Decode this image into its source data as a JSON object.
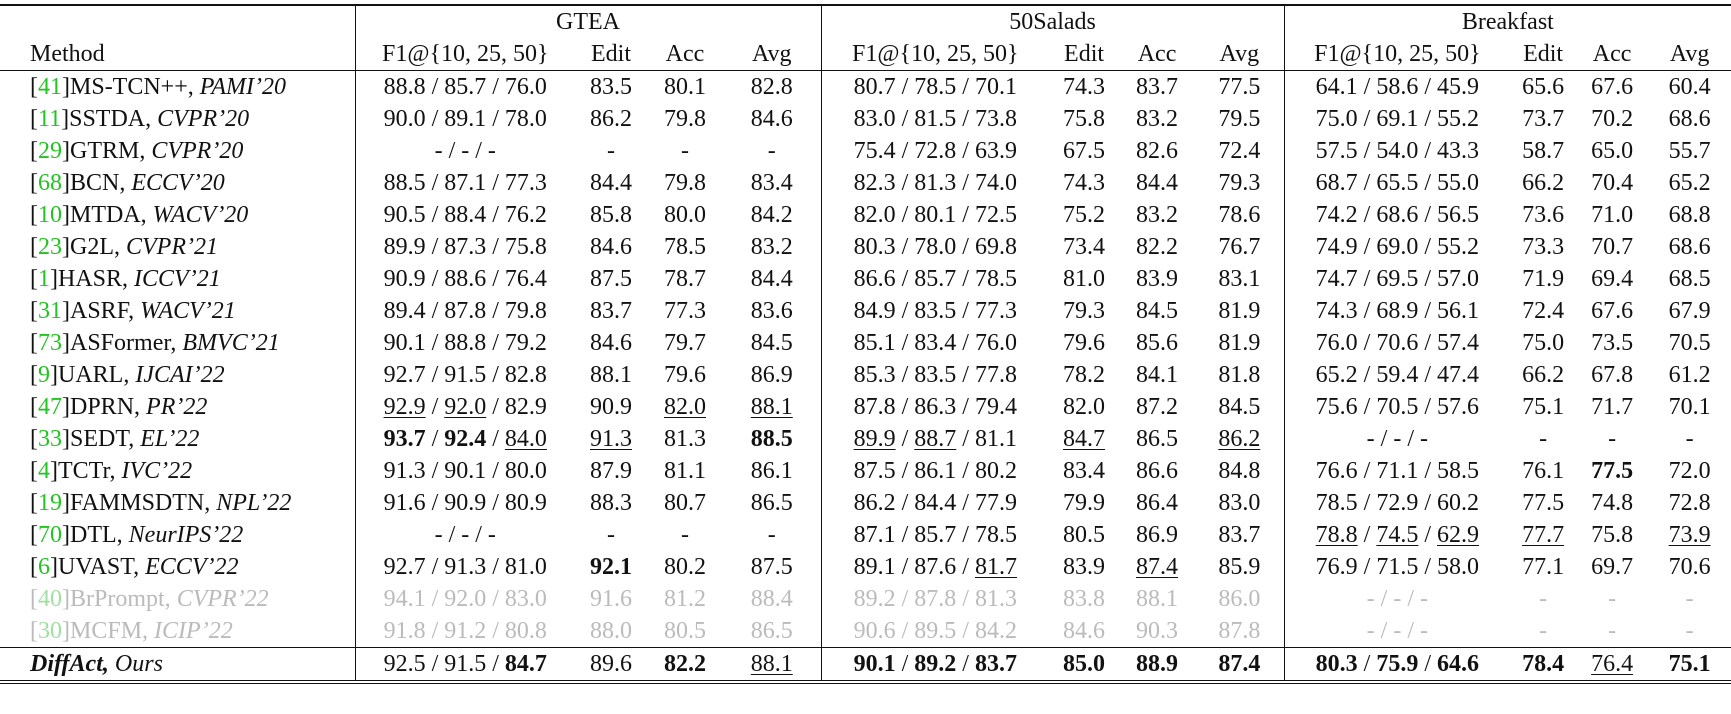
{
  "table": {
    "method_header": "Method",
    "f1_separator": " / ",
    "datasets": [
      {
        "name": "GTEA",
        "columns": [
          "F1@{10, 25, 50}",
          "Edit",
          "Acc",
          "Avg"
        ]
      },
      {
        "name": "50Salads",
        "columns": [
          "F1@{10, 25, 50}",
          "Edit",
          "Acc",
          "Avg"
        ]
      },
      {
        "name": "Breakfast",
        "columns": [
          "F1@{10, 25, 50}",
          "Edit",
          "Acc",
          "Avg"
        ]
      }
    ],
    "rows": [
      {
        "ref": "[41]",
        "name": "MS-TCN++,",
        "venue": "PAMI’20",
        "results": [
          [
            "88.8",
            "85.7",
            "76.0",
            "83.5",
            "80.1",
            "82.8"
          ],
          [
            "80.7",
            "78.5",
            "70.1",
            "74.3",
            "83.7",
            "77.5"
          ],
          [
            "64.1",
            "58.6",
            "45.9",
            "65.6",
            "67.6",
            "60.4"
          ]
        ]
      },
      {
        "ref": "[11]",
        "name": "SSTDA,",
        "venue": "CVPR’20",
        "results": [
          [
            "90.0",
            "89.1",
            "78.0",
            "86.2",
            "79.8",
            "84.6"
          ],
          [
            "83.0",
            "81.5",
            "73.8",
            "75.8",
            "83.2",
            "79.5"
          ],
          [
            "75.0",
            "69.1",
            "55.2",
            "73.7",
            "70.2",
            "68.6"
          ]
        ]
      },
      {
        "ref": "[29]",
        "name": "GTRM,",
        "venue": "CVPR’20",
        "results": [
          [
            "-",
            "-",
            "-",
            "-",
            "-",
            "-"
          ],
          [
            "75.4",
            "72.8",
            "63.9",
            "67.5",
            "82.6",
            "72.4"
          ],
          [
            "57.5",
            "54.0",
            "43.3",
            "58.7",
            "65.0",
            "55.7"
          ]
        ]
      },
      {
        "ref": "[68]",
        "name": "BCN,",
        "venue": "ECCV’20",
        "results": [
          [
            "88.5",
            "87.1",
            "77.3",
            "84.4",
            "79.8",
            "83.4"
          ],
          [
            "82.3",
            "81.3",
            "74.0",
            "74.3",
            "84.4",
            "79.3"
          ],
          [
            "68.7",
            "65.5",
            "55.0",
            "66.2",
            "70.4",
            "65.2"
          ]
        ]
      },
      {
        "ref": "[10]",
        "name": "MTDA,",
        "venue": "WACV’20",
        "results": [
          [
            "90.5",
            "88.4",
            "76.2",
            "85.8",
            "80.0",
            "84.2"
          ],
          [
            "82.0",
            "80.1",
            "72.5",
            "75.2",
            "83.2",
            "78.6"
          ],
          [
            "74.2",
            "68.6",
            "56.5",
            "73.6",
            "71.0",
            "68.8"
          ]
        ]
      },
      {
        "ref": "[23]",
        "name": "G2L,",
        "venue": "CVPR’21",
        "results": [
          [
            "89.9",
            "87.3",
            "75.8",
            "84.6",
            "78.5",
            "83.2"
          ],
          [
            "80.3",
            "78.0",
            "69.8",
            "73.4",
            "82.2",
            "76.7"
          ],
          [
            "74.9",
            "69.0",
            "55.2",
            "73.3",
            "70.7",
            "68.6"
          ]
        ]
      },
      {
        "ref": "[1]",
        "name": "HASR,",
        "venue": "ICCV’21",
        "results": [
          [
            "90.9",
            "88.6",
            "76.4",
            "87.5",
            "78.7",
            "84.4"
          ],
          [
            "86.6",
            "85.7",
            "78.5",
            "81.0",
            "83.9",
            "83.1"
          ],
          [
            "74.7",
            "69.5",
            "57.0",
            "71.9",
            "69.4",
            "68.5"
          ]
        ]
      },
      {
        "ref": "[31]",
        "name": "ASRF,",
        "venue": "WACV’21",
        "results": [
          [
            "89.4",
            "87.8",
            "79.8",
            "83.7",
            "77.3",
            "83.6"
          ],
          [
            "84.9",
            "83.5",
            "77.3",
            "79.3",
            "84.5",
            "81.9"
          ],
          [
            "74.3",
            "68.9",
            "56.1",
            "72.4",
            "67.6",
            "67.9"
          ]
        ]
      },
      {
        "ref": "[73]",
        "name": "ASFormer,",
        "venue": "BMVC’21",
        "results": [
          [
            "90.1",
            "88.8",
            "79.2",
            "84.6",
            "79.7",
            "84.5"
          ],
          [
            "85.1",
            "83.4",
            "76.0",
            "79.6",
            "85.6",
            "81.9"
          ],
          [
            "76.0",
            "70.6",
            "57.4",
            "75.0",
            "73.5",
            "70.5"
          ]
        ]
      },
      {
        "ref": "[9]",
        "name": "UARL,",
        "venue": "IJCAI’22",
        "results": [
          [
            "92.7",
            "91.5",
            "82.8",
            "88.1",
            "79.6",
            "86.9"
          ],
          [
            "85.3",
            "83.5",
            "77.8",
            "78.2",
            "84.1",
            "81.8"
          ],
          [
            "65.2",
            "59.4",
            "47.4",
            "66.2",
            "67.8",
            "61.2"
          ]
        ]
      },
      {
        "ref": "[47]",
        "name": "DPRN,",
        "venue": "PR’22",
        "results": [
          [
            {
              "text": "92.9",
              "style": "underline"
            },
            {
              "text": "92.0",
              "style": "underline"
            },
            "82.9",
            "90.9",
            {
              "text": "82.0",
              "style": "underline"
            },
            {
              "text": "88.1",
              "style": "underline"
            }
          ],
          [
            "87.8",
            "86.3",
            "79.4",
            "82.0",
            "87.2",
            "84.5"
          ],
          [
            "75.6",
            "70.5",
            "57.6",
            "75.1",
            "71.7",
            "70.1"
          ]
        ]
      },
      {
        "ref": "[33]",
        "name": "SEDT,",
        "venue": "EL’22",
        "results": [
          [
            {
              "text": "93.7",
              "style": "bold"
            },
            {
              "text": "92.4",
              "style": "bold"
            },
            {
              "text": "84.0",
              "style": "underline"
            },
            {
              "text": "91.3",
              "style": "underline"
            },
            "81.3",
            {
              "text": "88.5",
              "style": "bold"
            }
          ],
          [
            {
              "text": "89.9",
              "style": "underline"
            },
            {
              "text": "88.7",
              "style": "underline"
            },
            "81.1",
            {
              "text": "84.7",
              "style": "underline"
            },
            "86.5",
            {
              "text": "86.2",
              "style": "underline"
            }
          ],
          [
            "-",
            "-",
            "-",
            "-",
            "-",
            "-"
          ]
        ]
      },
      {
        "ref": "[4]",
        "name": "TCTr,",
        "venue": "IVC’22",
        "results": [
          [
            "91.3",
            "90.1",
            "80.0",
            "87.9",
            "81.1",
            "86.1"
          ],
          [
            "87.5",
            "86.1",
            "80.2",
            "83.4",
            "86.6",
            "84.8"
          ],
          [
            "76.6",
            "71.1",
            "58.5",
            "76.1",
            {
              "text": "77.5",
              "style": "bold"
            },
            "72.0"
          ]
        ]
      },
      {
        "ref": "[19]",
        "name": "FAMMSDTN,",
        "venue": "NPL’22",
        "results": [
          [
            "91.6",
            "90.9",
            "80.9",
            "88.3",
            "80.7",
            "86.5"
          ],
          [
            "86.2",
            "84.4",
            "77.9",
            "79.9",
            "86.4",
            "83.0"
          ],
          [
            "78.5",
            "72.9",
            "60.2",
            "77.5",
            "74.8",
            "72.8"
          ]
        ]
      },
      {
        "ref": "[70]",
        "name": "DTL,",
        "venue": "NeurIPS’22",
        "results": [
          [
            "-",
            "-",
            "-",
            "-",
            "-",
            "-"
          ],
          [
            "87.1",
            "85.7",
            "78.5",
            "80.5",
            "86.9",
            "83.7"
          ],
          [
            {
              "text": "78.8",
              "style": "underline"
            },
            {
              "text": "74.5",
              "style": "underline"
            },
            {
              "text": "62.9",
              "style": "underline"
            },
            {
              "text": "77.7",
              "style": "underline"
            },
            "75.8",
            {
              "text": "73.9",
              "style": "underline"
            }
          ]
        ]
      },
      {
        "ref": "[6]",
        "name": "UVAST,",
        "venue": "ECCV’22",
        "results": [
          [
            "92.7",
            "91.3",
            "81.0",
            {
              "text": "92.1",
              "style": "bold"
            },
            "80.2",
            "87.5"
          ],
          [
            "89.1",
            "87.6",
            {
              "text": "81.7",
              "style": "underline"
            },
            "83.9",
            {
              "text": "87.4",
              "style": "underline"
            },
            "85.9"
          ],
          [
            "76.9",
            "71.5",
            "58.0",
            "77.1",
            "69.7",
            "70.6"
          ]
        ]
      },
      {
        "ref": "[40]",
        "name": "BrPrompt,",
        "venue": "CVPR’22",
        "greyed": true,
        "results": [
          [
            "94.1",
            "92.0",
            "83.0",
            "91.6",
            "81.2",
            "88.4"
          ],
          [
            "89.2",
            "87.8",
            "81.3",
            "83.8",
            "88.1",
            "86.0"
          ],
          [
            "-",
            "-",
            "-",
            "-",
            "-",
            "-"
          ]
        ]
      },
      {
        "ref": "[30]",
        "name": "MCFM,",
        "venue": "ICIP’22",
        "greyed": true,
        "results": [
          [
            "91.8",
            "91.2",
            "80.8",
            "88.0",
            "80.5",
            "86.5"
          ],
          [
            "90.6",
            "89.5",
            "84.2",
            "84.6",
            "90.3",
            "87.8"
          ],
          [
            "-",
            "-",
            "-",
            "-",
            "-",
            "-"
          ]
        ]
      },
      {
        "name": "DiffAct,",
        "venue": "Ours",
        "ours": true,
        "results": [
          [
            "92.5",
            "91.5",
            {
              "text": "84.7",
              "style": "bold"
            },
            "89.6",
            {
              "text": "82.2",
              "style": "bold"
            },
            {
              "text": "88.1",
              "style": "underline"
            }
          ],
          [
            {
              "text": "90.1",
              "style": "bold"
            },
            {
              "text": "89.2",
              "style": "bold"
            },
            {
              "text": "83.7",
              "style": "bold"
            },
            {
              "text": "85.0",
              "style": "bold"
            },
            {
              "text": "88.9",
              "style": "bold"
            },
            {
              "text": "87.4",
              "style": "bold"
            }
          ],
          [
            {
              "text": "80.3",
              "style": "bold"
            },
            {
              "text": "75.9",
              "style": "bold"
            },
            {
              "text": "64.6",
              "style": "bold"
            },
            {
              "text": "78.4",
              "style": "bold"
            },
            {
              "text": "76.4",
              "style": "underline"
            },
            {
              "text": "75.1",
              "style": "bold"
            }
          ]
        ]
      }
    ]
  }
}
